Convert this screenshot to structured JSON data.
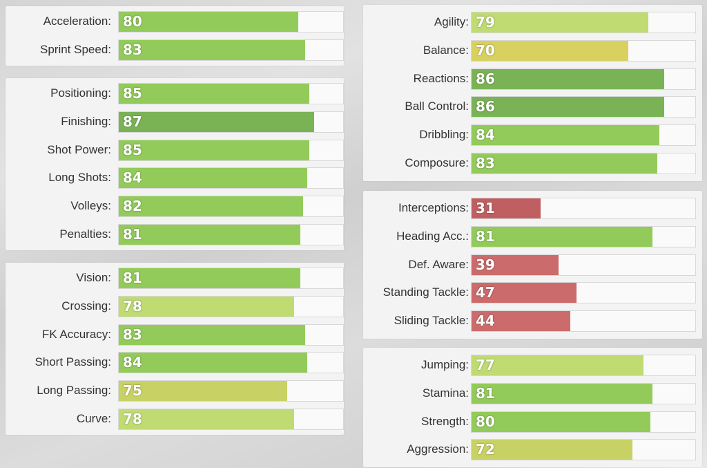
{
  "colors": {
    "dark_green": "#7ab356",
    "green": "#93cb5a",
    "light_green": "#bfdb72",
    "yellow_green": "#c8d264",
    "yellow": "#d8d160",
    "red": "#cc6b6b",
    "dark_red": "#bf5f62"
  },
  "left_column": [
    {
      "stats": [
        {
          "label": "Acceleration:",
          "value": 80,
          "color": "#93cb5a"
        },
        {
          "label": "Sprint Speed:",
          "value": 83,
          "color": "#93cb5a"
        }
      ]
    },
    {
      "stats": [
        {
          "label": "Positioning:",
          "value": 85,
          "color": "#93cb5a"
        },
        {
          "label": "Finishing:",
          "value": 87,
          "color": "#7ab356"
        },
        {
          "label": "Shot Power:",
          "value": 85,
          "color": "#93cb5a"
        },
        {
          "label": "Long Shots:",
          "value": 84,
          "color": "#93cb5a"
        },
        {
          "label": "Volleys:",
          "value": 82,
          "color": "#93cb5a"
        },
        {
          "label": "Penalties:",
          "value": 81,
          "color": "#93cb5a"
        }
      ]
    },
    {
      "stats": [
        {
          "label": "Vision:",
          "value": 81,
          "color": "#93cb5a"
        },
        {
          "label": "Crossing:",
          "value": 78,
          "color": "#bfdb72"
        },
        {
          "label": "FK Accuracy:",
          "value": 83,
          "color": "#93cb5a"
        },
        {
          "label": "Short Passing:",
          "value": 84,
          "color": "#93cb5a"
        },
        {
          "label": "Long Passing:",
          "value": 75,
          "color": "#c8d264"
        },
        {
          "label": "Curve:",
          "value": 78,
          "color": "#bfdb72"
        }
      ]
    }
  ],
  "right_column": [
    {
      "stats": [
        {
          "label": "Agility:",
          "value": 79,
          "color": "#bfdb72"
        },
        {
          "label": "Balance:",
          "value": 70,
          "color": "#d8d160"
        },
        {
          "label": "Reactions:",
          "value": 86,
          "color": "#7ab356"
        },
        {
          "label": "Ball Control:",
          "value": 86,
          "color": "#7ab356"
        },
        {
          "label": "Dribbling:",
          "value": 84,
          "color": "#93cb5a"
        },
        {
          "label": "Composure:",
          "value": 83,
          "color": "#93cb5a"
        }
      ]
    },
    {
      "stats": [
        {
          "label": "Interceptions:",
          "value": 31,
          "color": "#bf5f62"
        },
        {
          "label": "Heading Acc.:",
          "value": 81,
          "color": "#93cb5a"
        },
        {
          "label": "Def. Aware:",
          "value": 39,
          "color": "#cc6b6b"
        },
        {
          "label": "Standing Tackle:",
          "value": 47,
          "color": "#cc6b6b"
        },
        {
          "label": "Sliding Tackle:",
          "value": 44,
          "color": "#cc6b6b"
        }
      ]
    },
    {
      "stats": [
        {
          "label": "Jumping:",
          "value": 77,
          "color": "#bfdb72"
        },
        {
          "label": "Stamina:",
          "value": 81,
          "color": "#93cb5a"
        },
        {
          "label": "Strength:",
          "value": 80,
          "color": "#93cb5a"
        },
        {
          "label": "Aggression:",
          "value": 72,
          "color": "#c8d264"
        }
      ]
    }
  ]
}
